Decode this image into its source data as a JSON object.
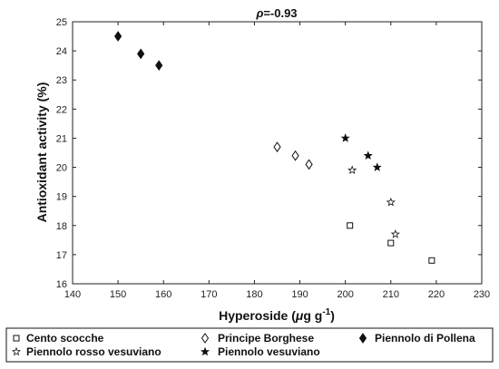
{
  "chart_data": {
    "type": "scatter",
    "title_prefix": "ρ",
    "title_value": "=-0.93",
    "xlabel_prefix": "Hyperoside (",
    "xlabel_mu": "μ",
    "xlabel_unit": "g g",
    "xlabel_exp": "-1",
    "xlabel_suffix": ")",
    "ylabel": "Antioxidant activity (%)",
    "xlim": [
      140,
      230
    ],
    "ylim": [
      16,
      25
    ],
    "xticks": [
      140,
      150,
      160,
      170,
      180,
      190,
      200,
      210,
      220,
      230
    ],
    "yticks": [
      16,
      17,
      18,
      19,
      20,
      21,
      22,
      23,
      24,
      25
    ],
    "grid": false,
    "legend_position": "bottom",
    "series": [
      {
        "name": "Cento scocche",
        "marker": "square-open",
        "x": [
          201,
          210,
          219
        ],
        "y": [
          18.0,
          17.4,
          16.8
        ]
      },
      {
        "name": "Principe Borghese",
        "marker": "diamond-open",
        "x": [
          185,
          189,
          192
        ],
        "y": [
          20.7,
          20.4,
          20.1
        ]
      },
      {
        "name": "Piennolo di Pollena",
        "marker": "diamond-filled",
        "x": [
          150,
          155,
          159
        ],
        "y": [
          24.5,
          23.9,
          23.5
        ]
      },
      {
        "name": "Piennolo rosso vesuviano",
        "marker": "star-open",
        "x": [
          201.5,
          210,
          211
        ],
        "y": [
          19.9,
          18.8,
          17.7
        ]
      },
      {
        "name": "Piennolo vesuviano",
        "marker": "star-filled",
        "x": [
          200,
          205,
          207
        ],
        "y": [
          21.0,
          20.4,
          20.0
        ]
      }
    ]
  }
}
